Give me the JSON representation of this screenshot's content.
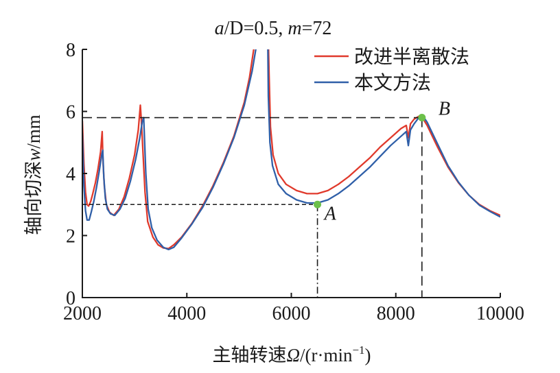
{
  "chart_data": {
    "type": "line",
    "title": {
      "a": "a",
      "slash": "/D=0.5, ",
      "m": "m",
      "rest": "=72"
    },
    "xlabel": {
      "prefix": "主轴转速",
      "symbol": "Ω",
      "suffix": "/(r·min",
      "sup": "−1",
      "close": ")"
    },
    "ylabel": {
      "prefix": "轴向切深",
      "symbol": "w",
      "suffix": "/mm"
    },
    "xlim": [
      2000,
      10000
    ],
    "ylim": [
      0,
      8
    ],
    "xticks": [
      "2000",
      "4000",
      "6000",
      "8000",
      "10000"
    ],
    "yticks": [
      "0",
      "2",
      "4",
      "6",
      "8"
    ],
    "grid": false,
    "legend_position": "top-right",
    "colors": {
      "improved": "#e0392b",
      "proposed": "#2f5fa8",
      "marker": "#6cc04a",
      "axis": "#1a1a1a"
    },
    "series": [
      {
        "name": "改进半离散法",
        "color": "#e0392b",
        "points": [
          [
            2000,
            5.7
          ],
          [
            2030,
            4.3
          ],
          [
            2060,
            3.4
          ],
          [
            2090,
            3.0
          ],
          [
            2120,
            2.95
          ],
          [
            2160,
            3.1
          ],
          [
            2200,
            3.35
          ],
          [
            2250,
            3.7
          ],
          [
            2300,
            4.15
          ],
          [
            2350,
            4.7
          ],
          [
            2380,
            5.35
          ],
          [
            2395,
            4.4
          ],
          [
            2420,
            3.6
          ],
          [
            2460,
            3.0
          ],
          [
            2520,
            2.75
          ],
          [
            2600,
            2.65
          ],
          [
            2700,
            2.85
          ],
          [
            2800,
            3.25
          ],
          [
            2900,
            3.85
          ],
          [
            3000,
            4.6
          ],
          [
            3070,
            5.4
          ],
          [
            3110,
            6.2
          ],
          [
            3130,
            5.7
          ],
          [
            3160,
            4.7
          ],
          [
            3200,
            3.4
          ],
          [
            3250,
            2.45
          ],
          [
            3350,
            1.95
          ],
          [
            3450,
            1.7
          ],
          [
            3550,
            1.6
          ],
          [
            3650,
            1.58
          ],
          [
            3750,
            1.7
          ],
          [
            3900,
            1.95
          ],
          [
            4100,
            2.4
          ],
          [
            4300,
            2.95
          ],
          [
            4500,
            3.6
          ],
          [
            4700,
            4.35
          ],
          [
            4900,
            5.2
          ],
          [
            5100,
            6.3
          ],
          [
            5200,
            7.1
          ],
          [
            5280,
            8.0
          ],
          [
            5300,
            8.3
          ],
          [
            5560,
            8.3
          ],
          [
            5575,
            7.2
          ],
          [
            5600,
            5.5
          ],
          [
            5650,
            4.6
          ],
          [
            5750,
            4.0
          ],
          [
            5900,
            3.65
          ],
          [
            6100,
            3.45
          ],
          [
            6300,
            3.35
          ],
          [
            6500,
            3.35
          ],
          [
            6700,
            3.45
          ],
          [
            6900,
            3.65
          ],
          [
            7100,
            3.9
          ],
          [
            7300,
            4.2
          ],
          [
            7500,
            4.5
          ],
          [
            7700,
            4.85
          ],
          [
            7900,
            5.15
          ],
          [
            8100,
            5.45
          ],
          [
            8200,
            5.55
          ],
          [
            8240,
            5.15
          ],
          [
            8280,
            5.6
          ],
          [
            8350,
            5.75
          ],
          [
            8450,
            5.85
          ],
          [
            8500,
            5.82
          ],
          [
            8600,
            5.55
          ],
          [
            8800,
            4.85
          ],
          [
            9000,
            4.2
          ],
          [
            9200,
            3.7
          ],
          [
            9400,
            3.3
          ],
          [
            9600,
            3.0
          ],
          [
            9800,
            2.8
          ],
          [
            10000,
            2.65
          ]
        ]
      },
      {
        "name": "本文方法",
        "color": "#2f5fa8",
        "points": [
          [
            2000,
            5.3
          ],
          [
            2030,
            3.6
          ],
          [
            2060,
            2.8
          ],
          [
            2090,
            2.5
          ],
          [
            2130,
            2.5
          ],
          [
            2170,
            2.75
          ],
          [
            2220,
            3.1
          ],
          [
            2270,
            3.55
          ],
          [
            2320,
            4.05
          ],
          [
            2370,
            4.6
          ],
          [
            2390,
            4.75
          ],
          [
            2410,
            3.9
          ],
          [
            2440,
            3.2
          ],
          [
            2480,
            2.85
          ],
          [
            2540,
            2.7
          ],
          [
            2620,
            2.65
          ],
          [
            2720,
            2.85
          ],
          [
            2820,
            3.2
          ],
          [
            2920,
            3.75
          ],
          [
            3020,
            4.45
          ],
          [
            3100,
            5.15
          ],
          [
            3150,
            5.7
          ],
          [
            3175,
            5.8
          ],
          [
            3190,
            5.1
          ],
          [
            3215,
            4.0
          ],
          [
            3260,
            2.85
          ],
          [
            3330,
            2.25
          ],
          [
            3430,
            1.85
          ],
          [
            3550,
            1.62
          ],
          [
            3650,
            1.55
          ],
          [
            3750,
            1.62
          ],
          [
            3900,
            1.92
          ],
          [
            4100,
            2.38
          ],
          [
            4300,
            2.9
          ],
          [
            4500,
            3.55
          ],
          [
            4700,
            4.3
          ],
          [
            4900,
            5.15
          ],
          [
            5100,
            6.2
          ],
          [
            5250,
            7.3
          ],
          [
            5350,
            8.3
          ],
          [
            5550,
            8.3
          ],
          [
            5560,
            6.5
          ],
          [
            5590,
            5.0
          ],
          [
            5640,
            4.25
          ],
          [
            5750,
            3.65
          ],
          [
            5900,
            3.35
          ],
          [
            6100,
            3.15
          ],
          [
            6300,
            3.05
          ],
          [
            6500,
            3.05
          ],
          [
            6700,
            3.15
          ],
          [
            6900,
            3.35
          ],
          [
            7100,
            3.6
          ],
          [
            7300,
            3.9
          ],
          [
            7500,
            4.2
          ],
          [
            7700,
            4.55
          ],
          [
            7900,
            4.9
          ],
          [
            8100,
            5.2
          ],
          [
            8200,
            5.35
          ],
          [
            8240,
            4.9
          ],
          [
            8280,
            5.4
          ],
          [
            8350,
            5.6
          ],
          [
            8450,
            5.82
          ],
          [
            8520,
            5.85
          ],
          [
            8600,
            5.65
          ],
          [
            8800,
            4.95
          ],
          [
            9000,
            4.25
          ],
          [
            9200,
            3.72
          ],
          [
            9400,
            3.3
          ],
          [
            9600,
            2.98
          ],
          [
            9800,
            2.78
          ],
          [
            10000,
            2.6
          ]
        ]
      }
    ],
    "points": [
      {
        "label": "A",
        "x": 6500,
        "y": 3.0
      },
      {
        "label": "B",
        "x": 8500,
        "y": 5.8
      }
    ]
  }
}
